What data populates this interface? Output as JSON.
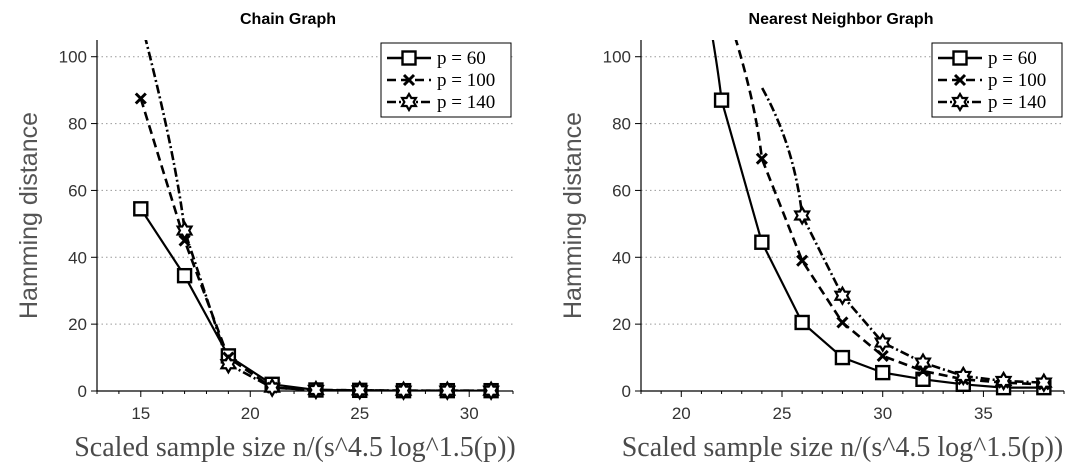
{
  "chart_data": [
    {
      "type": "line",
      "title": "Chain Graph",
      "ylabel": "Hamming distance",
      "xlabel": "Scaled sample size n/(s^4.5 log^1.5(p))",
      "xlim": [
        13,
        32
      ],
      "ylim": [
        0,
        105
      ],
      "xticks": [
        15,
        20,
        25,
        30
      ],
      "yticks": [
        0,
        20,
        40,
        60,
        80,
        100
      ],
      "grid": "horizontal dotted",
      "legend_position": "top-right",
      "series": [
        {
          "name": "p = 60",
          "style": "solid",
          "marker": "square",
          "x": [
            15,
            17,
            19,
            21,
            23,
            25,
            27,
            29,
            31
          ],
          "y": [
            54.5,
            34.5,
            10.5,
            2.0,
            0.3,
            0.2,
            0.1,
            0.1,
            0.1
          ]
        },
        {
          "name": "p = 100",
          "style": "dashed",
          "marker": "x",
          "x": [
            15,
            17,
            19,
            21,
            23,
            25,
            27,
            29,
            31
          ],
          "y": [
            87.5,
            45.0,
            10.0,
            1.0,
            0.3,
            0.2,
            0.1,
            0.1,
            0.1
          ]
        },
        {
          "name": "p = 140",
          "style": "dashdot",
          "marker": "star",
          "x": [
            15,
            17,
            19,
            21,
            23,
            25,
            27,
            29,
            31
          ],
          "y": [
            null,
            48.0,
            8.0,
            1.0,
            0.3,
            0.2,
            0.1,
            0.1,
            0.1
          ]
        }
      ]
    },
    {
      "type": "line",
      "title": "Nearest Neighbor Graph",
      "ylabel": "Hamming distance",
      "xlabel": "Scaled sample size n/(s^4.5 log^1.5(p))",
      "xlim": [
        18,
        39
      ],
      "ylim": [
        0,
        105
      ],
      "xticks": [
        20,
        25,
        30,
        35
      ],
      "yticks": [
        0,
        20,
        40,
        60,
        80,
        100
      ],
      "grid": "horizontal dotted",
      "legend_position": "top-right",
      "series": [
        {
          "name": "p = 60",
          "style": "solid",
          "marker": "square",
          "x": [
            22,
            24,
            26,
            28,
            30,
            32,
            34,
            36,
            38
          ],
          "y": [
            87.0,
            44.5,
            20.5,
            10.0,
            5.5,
            3.5,
            2.0,
            1.0,
            1.0
          ]
        },
        {
          "name": "p = 100",
          "style": "dashed",
          "marker": "x",
          "x": [
            24,
            26,
            28,
            30,
            32,
            34,
            36,
            38
          ],
          "y": [
            69.5,
            39.0,
            20.5,
            10.5,
            6.0,
            3.5,
            2.5,
            2.0
          ]
        },
        {
          "name": "p = 140",
          "style": "dashdot",
          "marker": "star",
          "x": [
            26,
            28,
            30,
            32,
            34,
            36,
            38
          ],
          "y": [
            52.5,
            28.5,
            14.5,
            8.5,
            4.5,
            3.0,
            2.5
          ]
        }
      ]
    }
  ]
}
